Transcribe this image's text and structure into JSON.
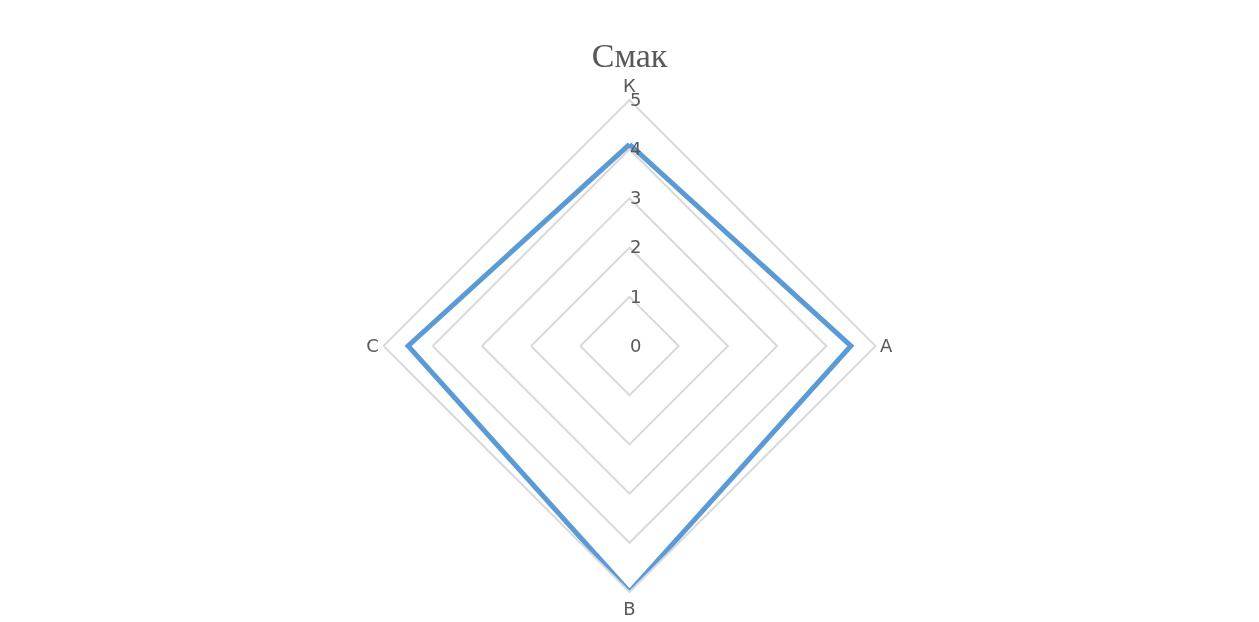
{
  "chart_data": {
    "type": "radar",
    "title": "Смак",
    "categories": [
      "К",
      "А",
      "В",
      "С"
    ],
    "series": [
      {
        "color": "#5b9bd5",
        "values": [
          4.1,
          4.5,
          5,
          4.5
        ]
      }
    ],
    "ylim": [
      0,
      5
    ],
    "yticks": [
      0,
      1,
      2,
      3,
      4,
      5
    ],
    "grid": true,
    "marker": "none",
    "line_style": "solid"
  }
}
